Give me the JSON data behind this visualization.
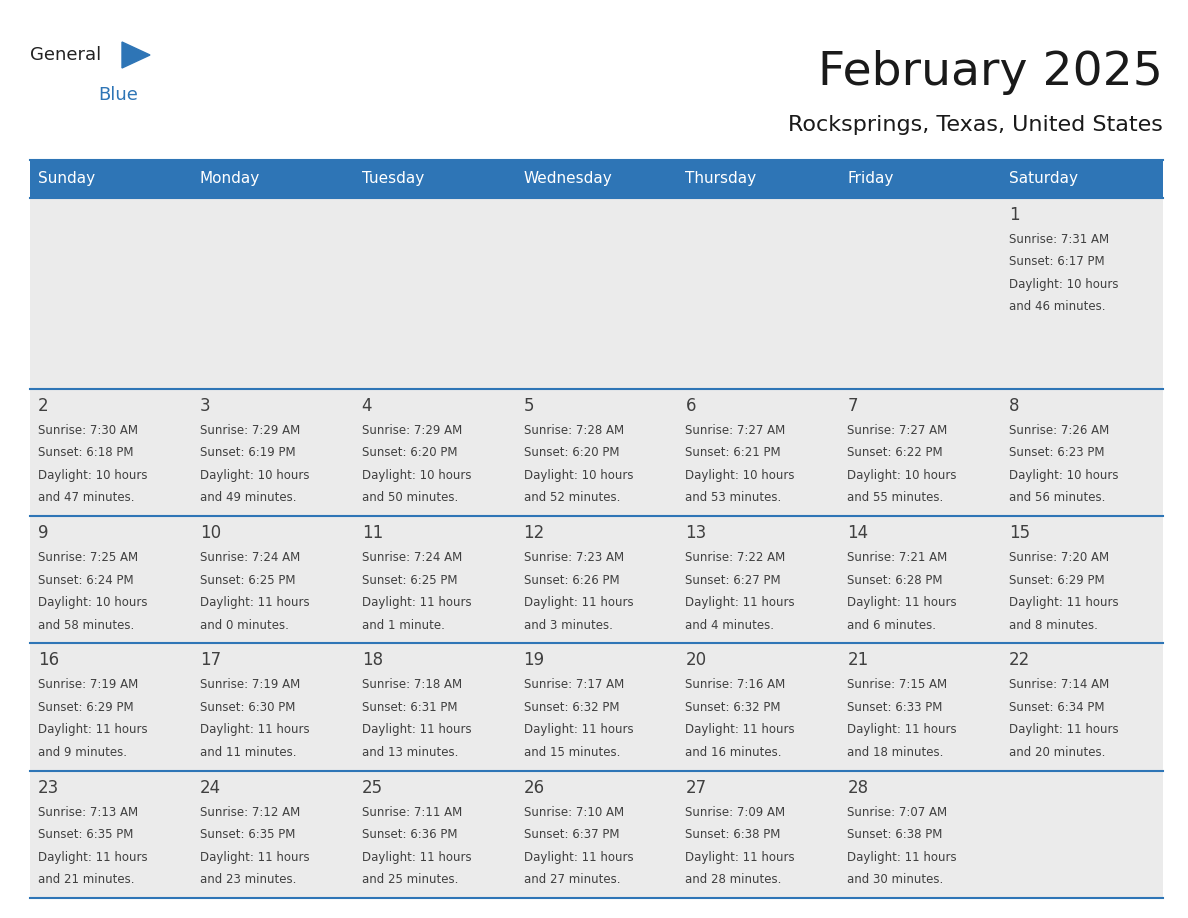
{
  "title": "February 2025",
  "subtitle": "Rocksprings, Texas, United States",
  "header_bg": "#2E75B6",
  "header_text": "#FFFFFF",
  "day_headers": [
    "Sunday",
    "Monday",
    "Tuesday",
    "Wednesday",
    "Thursday",
    "Friday",
    "Saturday"
  ],
  "cell_bg": "#EBEBEB",
  "cell_border_color": "#BBBBBB",
  "separator_color": "#2E75B6",
  "day_number_color": "#404040",
  "info_color": "#404040",
  "logo_general_color": "#222222",
  "logo_blue_color": "#2E75B6",
  "weeks": [
    [
      {
        "day": null,
        "info": ""
      },
      {
        "day": null,
        "info": ""
      },
      {
        "day": null,
        "info": ""
      },
      {
        "day": null,
        "info": ""
      },
      {
        "day": null,
        "info": ""
      },
      {
        "day": null,
        "info": ""
      },
      {
        "day": 1,
        "info": "Sunrise: 7:31 AM\nSunset: 6:17 PM\nDaylight: 10 hours\nand 46 minutes."
      }
    ],
    [
      {
        "day": 2,
        "info": "Sunrise: 7:30 AM\nSunset: 6:18 PM\nDaylight: 10 hours\nand 47 minutes."
      },
      {
        "day": 3,
        "info": "Sunrise: 7:29 AM\nSunset: 6:19 PM\nDaylight: 10 hours\nand 49 minutes."
      },
      {
        "day": 4,
        "info": "Sunrise: 7:29 AM\nSunset: 6:20 PM\nDaylight: 10 hours\nand 50 minutes."
      },
      {
        "day": 5,
        "info": "Sunrise: 7:28 AM\nSunset: 6:20 PM\nDaylight: 10 hours\nand 52 minutes."
      },
      {
        "day": 6,
        "info": "Sunrise: 7:27 AM\nSunset: 6:21 PM\nDaylight: 10 hours\nand 53 minutes."
      },
      {
        "day": 7,
        "info": "Sunrise: 7:27 AM\nSunset: 6:22 PM\nDaylight: 10 hours\nand 55 minutes."
      },
      {
        "day": 8,
        "info": "Sunrise: 7:26 AM\nSunset: 6:23 PM\nDaylight: 10 hours\nand 56 minutes."
      }
    ],
    [
      {
        "day": 9,
        "info": "Sunrise: 7:25 AM\nSunset: 6:24 PM\nDaylight: 10 hours\nand 58 minutes."
      },
      {
        "day": 10,
        "info": "Sunrise: 7:24 AM\nSunset: 6:25 PM\nDaylight: 11 hours\nand 0 minutes."
      },
      {
        "day": 11,
        "info": "Sunrise: 7:24 AM\nSunset: 6:25 PM\nDaylight: 11 hours\nand 1 minute."
      },
      {
        "day": 12,
        "info": "Sunrise: 7:23 AM\nSunset: 6:26 PM\nDaylight: 11 hours\nand 3 minutes."
      },
      {
        "day": 13,
        "info": "Sunrise: 7:22 AM\nSunset: 6:27 PM\nDaylight: 11 hours\nand 4 minutes."
      },
      {
        "day": 14,
        "info": "Sunrise: 7:21 AM\nSunset: 6:28 PM\nDaylight: 11 hours\nand 6 minutes."
      },
      {
        "day": 15,
        "info": "Sunrise: 7:20 AM\nSunset: 6:29 PM\nDaylight: 11 hours\nand 8 minutes."
      }
    ],
    [
      {
        "day": 16,
        "info": "Sunrise: 7:19 AM\nSunset: 6:29 PM\nDaylight: 11 hours\nand 9 minutes."
      },
      {
        "day": 17,
        "info": "Sunrise: 7:19 AM\nSunset: 6:30 PM\nDaylight: 11 hours\nand 11 minutes."
      },
      {
        "day": 18,
        "info": "Sunrise: 7:18 AM\nSunset: 6:31 PM\nDaylight: 11 hours\nand 13 minutes."
      },
      {
        "day": 19,
        "info": "Sunrise: 7:17 AM\nSunset: 6:32 PM\nDaylight: 11 hours\nand 15 minutes."
      },
      {
        "day": 20,
        "info": "Sunrise: 7:16 AM\nSunset: 6:32 PM\nDaylight: 11 hours\nand 16 minutes."
      },
      {
        "day": 21,
        "info": "Sunrise: 7:15 AM\nSunset: 6:33 PM\nDaylight: 11 hours\nand 18 minutes."
      },
      {
        "day": 22,
        "info": "Sunrise: 7:14 AM\nSunset: 6:34 PM\nDaylight: 11 hours\nand 20 minutes."
      }
    ],
    [
      {
        "day": 23,
        "info": "Sunrise: 7:13 AM\nSunset: 6:35 PM\nDaylight: 11 hours\nand 21 minutes."
      },
      {
        "day": 24,
        "info": "Sunrise: 7:12 AM\nSunset: 6:35 PM\nDaylight: 11 hours\nand 23 minutes."
      },
      {
        "day": 25,
        "info": "Sunrise: 7:11 AM\nSunset: 6:36 PM\nDaylight: 11 hours\nand 25 minutes."
      },
      {
        "day": 26,
        "info": "Sunrise: 7:10 AM\nSunset: 6:37 PM\nDaylight: 11 hours\nand 27 minutes."
      },
      {
        "day": 27,
        "info": "Sunrise: 7:09 AM\nSunset: 6:38 PM\nDaylight: 11 hours\nand 28 minutes."
      },
      {
        "day": 28,
        "info": "Sunrise: 7:07 AM\nSunset: 6:38 PM\nDaylight: 11 hours\nand 30 minutes."
      },
      {
        "day": null,
        "info": ""
      }
    ]
  ],
  "fig_width": 11.88,
  "fig_height": 9.18,
  "dpi": 100
}
